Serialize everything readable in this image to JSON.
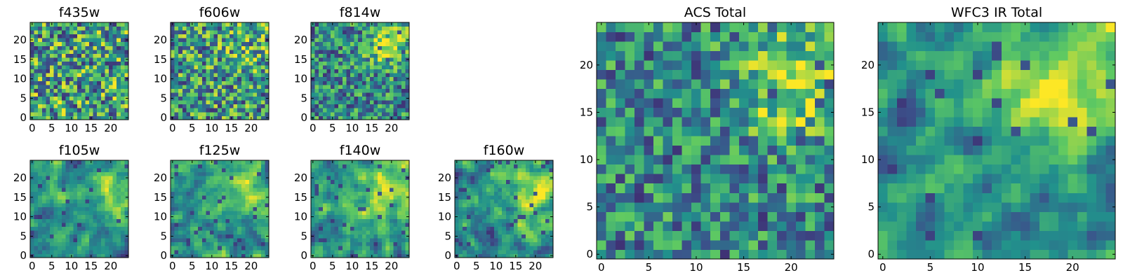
{
  "colormap": [
    "#440154",
    "#3b528b",
    "#21918c",
    "#5ec962",
    "#fde725"
  ],
  "chart_data": [
    {
      "type": "heatmap",
      "title": "f435w",
      "grid_size": 25,
      "seed": 11,
      "smooth": 0,
      "hotspot": {
        "x": 12,
        "y": 12,
        "sigma": 30,
        "amp": 0.0
      },
      "xticks": [
        0,
        5,
        10,
        15,
        20
      ],
      "yticks": [
        0,
        5,
        10,
        15,
        20
      ],
      "xlim": [
        -0.5,
        24.5
      ],
      "ylim": [
        -0.5,
        24.5
      ]
    },
    {
      "type": "heatmap",
      "title": "f606w",
      "grid_size": 25,
      "seed": 23,
      "smooth": 0,
      "hotspot": {
        "x": 19,
        "y": 20,
        "sigma": 5,
        "amp": 0.15
      },
      "xticks": [
        0,
        5,
        10,
        15,
        20
      ],
      "yticks": [
        0,
        5,
        10,
        15,
        20
      ],
      "xlim": [
        -0.5,
        24.5
      ],
      "ylim": [
        -0.5,
        24.5
      ]
    },
    {
      "type": "heatmap",
      "title": "f814w",
      "grid_size": 25,
      "seed": 37,
      "smooth": 0,
      "hotspot": {
        "x": 19,
        "y": 19,
        "sigma": 4,
        "amp": 0.45
      },
      "xticks": [
        0,
        5,
        10,
        15,
        20
      ],
      "yticks": [
        0,
        5,
        10,
        15,
        20
      ],
      "xlim": [
        -0.5,
        24.5
      ],
      "ylim": [
        -0.5,
        24.5
      ]
    },
    {
      "type": "heatmap",
      "title": "f105w",
      "grid_size": 25,
      "seed": 41,
      "smooth": 1,
      "hotspot": {
        "x": 20,
        "y": 17,
        "sigma": 5,
        "amp": 0.35
      },
      "xticks": [
        0,
        5,
        10,
        15,
        20
      ],
      "yticks": [
        0,
        5,
        10,
        15,
        20
      ],
      "xlim": [
        -0.5,
        24.5
      ],
      "ylim": [
        -0.5,
        24.5
      ]
    },
    {
      "type": "heatmap",
      "title": "f125w",
      "grid_size": 25,
      "seed": 53,
      "smooth": 1,
      "hotspot": {
        "x": 19,
        "y": 18,
        "sigma": 5,
        "amp": 0.3
      },
      "xticks": [
        0,
        5,
        10,
        15,
        20
      ],
      "yticks": [
        0,
        5,
        10,
        15,
        20
      ],
      "xlim": [
        -0.5,
        24.5
      ],
      "ylim": [
        -0.5,
        24.5
      ]
    },
    {
      "type": "heatmap",
      "title": "f140w",
      "grid_size": 25,
      "seed": 67,
      "smooth": 1,
      "hotspot": {
        "x": 19,
        "y": 17,
        "sigma": 6,
        "amp": 0.4
      },
      "xticks": [
        0,
        5,
        10,
        15,
        20
      ],
      "yticks": [
        0,
        5,
        10,
        15,
        20
      ],
      "xlim": [
        -0.5,
        24.5
      ],
      "ylim": [
        -0.5,
        24.5
      ]
    },
    {
      "type": "heatmap",
      "title": "f160w",
      "grid_size": 25,
      "seed": 79,
      "smooth": 1,
      "hotspot": {
        "x": 20,
        "y": 17,
        "sigma": 6,
        "amp": 0.4
      },
      "xticks": [
        0,
        5,
        10,
        15,
        20
      ],
      "yticks": [
        0,
        5,
        10,
        15,
        20
      ],
      "xlim": [
        -0.5,
        24.5
      ],
      "ylim": [
        -0.5,
        24.5
      ]
    },
    {
      "type": "heatmap",
      "title": "ACS Total",
      "grid_size": 25,
      "seed": 97,
      "smooth": 0,
      "hotspot": {
        "x": 20,
        "y": 18,
        "sigma": 4,
        "amp": 0.5
      },
      "xticks": [
        0,
        5,
        10,
        15,
        20
      ],
      "yticks": [
        0,
        5,
        10,
        15,
        20
      ],
      "xlim": [
        -0.5,
        24.5
      ],
      "ylim": [
        -0.5,
        24.5
      ]
    },
    {
      "type": "heatmap",
      "title": "WFC3 IR Total",
      "grid_size": 25,
      "seed": 113,
      "smooth": 1,
      "hotspot": {
        "x": 20,
        "y": 18,
        "sigma": 6,
        "amp": 0.5
      },
      "xticks": [
        0,
        5,
        10,
        15,
        20
      ],
      "yticks": [
        0,
        5,
        10,
        15,
        20
      ],
      "xlim": [
        -0.5,
        24.5
      ],
      "ylim": [
        -0.5,
        24.5
      ]
    }
  ]
}
